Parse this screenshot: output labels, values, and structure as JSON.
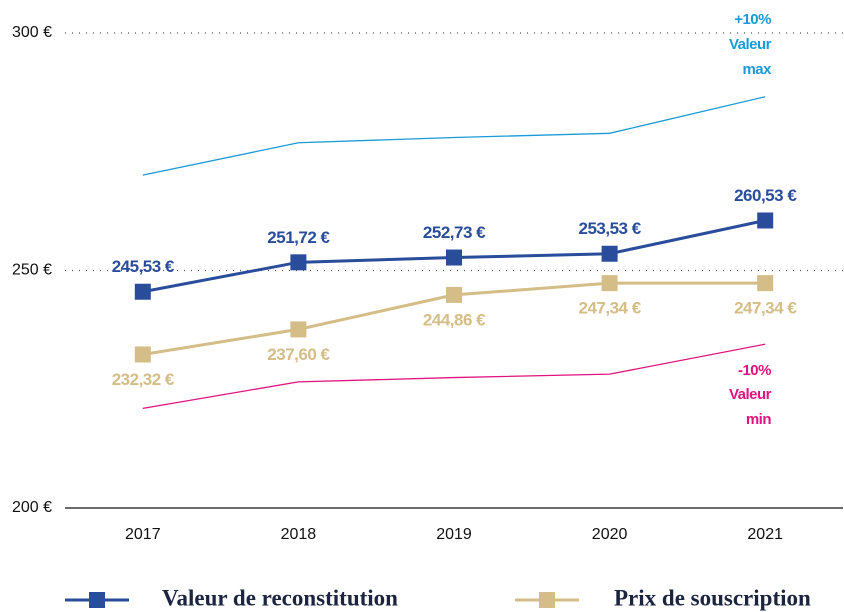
{
  "chart_data": {
    "type": "line",
    "categories": [
      "2017",
      "2018",
      "2019",
      "2020",
      "2021"
    ],
    "series": [
      {
        "color": "#1a9ad6",
        "values": [
          270.08,
          276.89,
          278.0,
          278.88,
          286.58
        ],
        "marker": "none"
      },
      {
        "color": "#e0137f",
        "values": [
          220.98,
          226.55,
          227.46,
          228.18,
          234.48
        ],
        "marker": "none"
      },
      {
        "name": "Prix de souscription",
        "color": "#d4bd87",
        "marker": "square",
        "values": [
          232.32,
          237.6,
          244.86,
          247.34,
          247.34
        ],
        "value_labels": [
          "232,32 €",
          "237,60 €",
          "244,86 €",
          "247,34 €",
          "247,34 €"
        ]
      },
      {
        "name": "Valeur de reconstitution",
        "color": "#2a4d9b",
        "marker": "square",
        "values": [
          245.53,
          251.72,
          252.73,
          253.53,
          260.53
        ],
        "value_labels": [
          "245,53 €",
          "251,72 €",
          "252,73 €",
          "253,53 €",
          "260,53 €"
        ]
      }
    ],
    "annotations": [
      {
        "lines": [
          "+10%",
          "Valeur",
          "max"
        ],
        "color": "#1a9ad6"
      },
      {
        "lines": [
          "-10%",
          "Valeur",
          "min"
        ],
        "color": "#e0137f"
      }
    ],
    "ylim": [
      200,
      300
    ],
    "yticks": [
      {
        "value": 200,
        "label": "200 €"
      },
      {
        "value": 250,
        "label": "250 €"
      },
      {
        "value": 300,
        "label": "300 €"
      }
    ],
    "grid": true
  }
}
